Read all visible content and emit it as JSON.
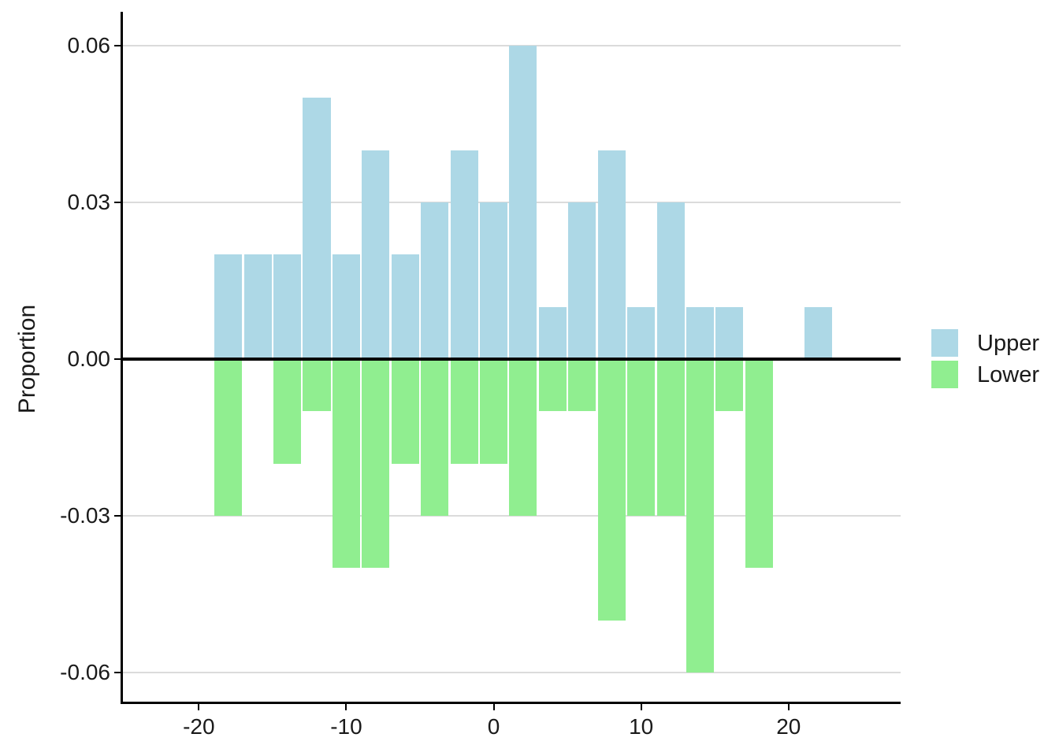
{
  "figure": {
    "background": "#FFFFFF",
    "y_axis_title": "Proportion",
    "legend": {
      "position": "right",
      "items": [
        {
          "label": "Upper",
          "color": "#ADD8E6"
        },
        {
          "label": "Lower",
          "color": "#90EE90"
        }
      ]
    }
  },
  "chart_data": {
    "type": "bar",
    "subtype": "mirrored_histogram",
    "title": "",
    "xlabel": "",
    "ylabel": "Proportion",
    "bin_width": 2,
    "bin_centers": [
      -18,
      -16,
      -14,
      -12,
      -10,
      -8,
      -6,
      -4,
      -2,
      0,
      2,
      4,
      6,
      8,
      10,
      12,
      14,
      16,
      18,
      20,
      22
    ],
    "series": [
      {
        "name": "Upper",
        "color": "#ADD8E6",
        "direction": "up",
        "values": [
          0.02,
          0.02,
          0.02,
          0.05,
          0.02,
          0.04,
          0.02,
          0.03,
          0.04,
          0.03,
          0.06,
          0.01,
          0.03,
          0.04,
          0.01,
          0.03,
          0.01,
          0.01,
          0,
          0,
          0.01
        ]
      },
      {
        "name": "Lower",
        "color": "#90EE90",
        "direction": "down",
        "values": [
          -0.03,
          0,
          -0.02,
          -0.01,
          -0.04,
          -0.04,
          -0.02,
          -0.03,
          -0.02,
          -0.02,
          -0.03,
          -0.01,
          -0.01,
          -0.05,
          -0.03,
          -0.03,
          -0.06,
          -0.01,
          -0.04,
          0,
          0
        ]
      }
    ],
    "x_ticks": [
      -20,
      -10,
      0,
      10,
      20
    ],
    "x_tick_labels": [
      "-20",
      "-10",
      "0",
      "10",
      "20"
    ],
    "y_ticks": [
      0.06,
      0.03,
      0,
      -0.03,
      -0.06
    ],
    "y_tick_labels": [
      "0.06",
      "0.03",
      "0.00",
      "-0.03",
      "-0.06"
    ],
    "xlim": [
      -25.2,
      27.6
    ],
    "ylim": [
      -0.0659,
      0.0665
    ],
    "grid": "horizontal_major_only",
    "zero_line": true,
    "legend_position": "right"
  }
}
